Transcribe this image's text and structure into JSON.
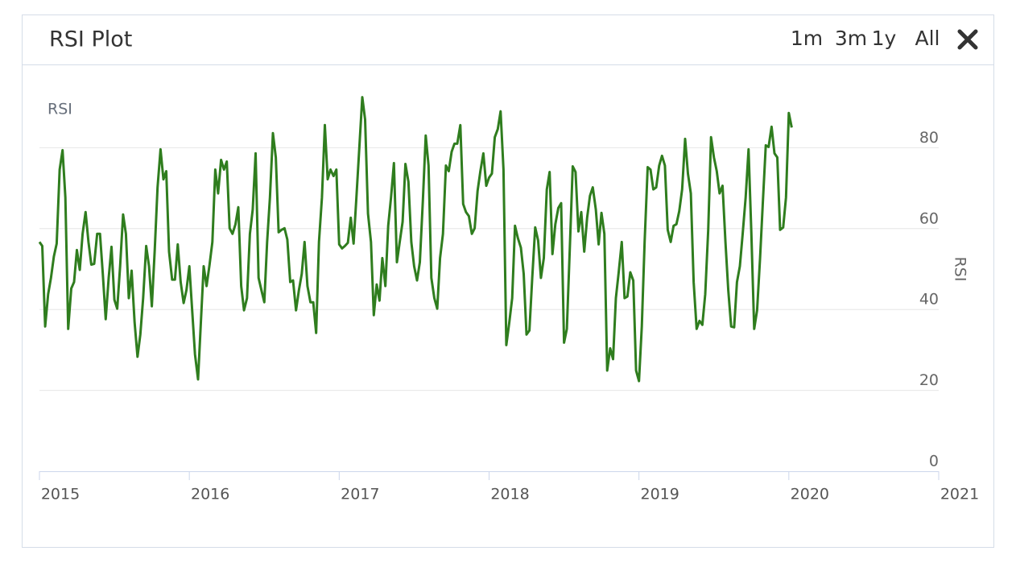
{
  "header": {
    "title": "RSI Plot",
    "buttons": [
      "1m",
      "3m",
      "1y",
      "All"
    ]
  },
  "chart_data": {
    "type": "line",
    "ylabel": "RSI",
    "xlim": [
      2015,
      2021
    ],
    "xticks": [
      2015,
      2016,
      2017,
      2018,
      2019,
      2020,
      2021
    ],
    "ylim": [
      0,
      100
    ],
    "yticks": [
      0,
      20,
      40,
      60,
      80
    ],
    "grid": true,
    "x": [
      2015,
      2015.019,
      2015.038,
      2015.058,
      2015.077,
      2015.096,
      2015.115,
      2015.135,
      2015.154,
      2015.173,
      2015.192,
      2015.212,
      2015.231,
      2015.25,
      2015.269,
      2015.288,
      2015.308,
      2015.327,
      2015.346,
      2015.365,
      2015.385,
      2015.404,
      2015.423,
      2015.442,
      2015.462,
      2015.481,
      2015.5,
      2015.519,
      2015.538,
      2015.558,
      2015.577,
      2015.596,
      2015.615,
      2015.635,
      2015.654,
      2015.673,
      2015.692,
      2015.712,
      2015.731,
      2015.75,
      2015.769,
      2015.788,
      2015.808,
      2015.827,
      2015.846,
      2015.865,
      2015.885,
      2015.904,
      2015.923,
      2015.942,
      2015.962,
      2015.981,
      2016,
      2016.019,
      2016.038,
      2016.058,
      2016.077,
      2016.096,
      2016.115,
      2016.135,
      2016.154,
      2016.173,
      2016.192,
      2016.212,
      2016.231,
      2016.25,
      2016.269,
      2016.288,
      2016.308,
      2016.327,
      2016.346,
      2016.365,
      2016.385,
      2016.404,
      2016.423,
      2016.442,
      2016.462,
      2016.481,
      2016.5,
      2016.519,
      2016.538,
      2016.558,
      2016.577,
      2016.596,
      2016.615,
      2016.635,
      2016.654,
      2016.673,
      2016.692,
      2016.712,
      2016.731,
      2016.75,
      2016.769,
      2016.788,
      2016.808,
      2016.827,
      2016.846,
      2016.865,
      2016.885,
      2016.904,
      2016.923,
      2016.942,
      2016.962,
      2016.981,
      2017,
      2017.019,
      2017.038,
      2017.058,
      2017.077,
      2017.096,
      2017.115,
      2017.135,
      2017.154,
      2017.173,
      2017.192,
      2017.212,
      2017.231,
      2017.25,
      2017.269,
      2017.288,
      2017.308,
      2017.327,
      2017.346,
      2017.365,
      2017.385,
      2017.404,
      2017.423,
      2017.442,
      2017.462,
      2017.481,
      2017.5,
      2017.519,
      2017.538,
      2017.558,
      2017.577,
      2017.596,
      2017.615,
      2017.635,
      2017.654,
      2017.673,
      2017.692,
      2017.712,
      2017.731,
      2017.75,
      2017.769,
      2017.788,
      2017.808,
      2017.827,
      2017.846,
      2017.865,
      2017.885,
      2017.904,
      2017.923,
      2017.942,
      2017.962,
      2017.981,
      2018,
      2018.019,
      2018.038,
      2018.058,
      2018.077,
      2018.096,
      2018.115,
      2018.135,
      2018.154,
      2018.173,
      2018.192,
      2018.212,
      2018.231,
      2018.25,
      2018.269,
      2018.288,
      2018.308,
      2018.327,
      2018.346,
      2018.365,
      2018.385,
      2018.404,
      2018.423,
      2018.442,
      2018.462,
      2018.481,
      2018.5,
      2018.519,
      2018.538,
      2018.558,
      2018.577,
      2018.596,
      2018.615,
      2018.635,
      2018.654,
      2018.673,
      2018.692,
      2018.712,
      2018.731,
      2018.75,
      2018.769,
      2018.788,
      2018.808,
      2018.827,
      2018.846,
      2018.865,
      2018.885,
      2018.904,
      2018.923,
      2018.942,
      2018.962,
      2018.981,
      2019,
      2019.019,
      2019.038,
      2019.058,
      2019.077,
      2019.096,
      2019.115,
      2019.135,
      2019.154,
      2019.173,
      2019.192,
      2019.212,
      2019.231,
      2019.25,
      2019.269,
      2019.288,
      2019.308,
      2019.327,
      2019.346,
      2019.365,
      2019.385,
      2019.404,
      2019.423,
      2019.442,
      2019.462,
      2019.481,
      2019.5,
      2019.519,
      2019.538,
      2019.558,
      2019.577,
      2019.596,
      2019.615,
      2019.635,
      2019.654,
      2019.673,
      2019.692,
      2019.712,
      2019.731,
      2019.75,
      2019.769,
      2019.788,
      2019.808,
      2019.827,
      2019.846,
      2019.865,
      2019.885,
      2019.904,
      2019.923,
      2019.942,
      2019.962,
      2019.981,
      2020,
      2020.019
    ],
    "series": [
      {
        "name": "RSI",
        "color": "#2f7d1e",
        "values": [
          56.7,
          55.7,
          35.8,
          43.8,
          47.8,
          53.1,
          56.3,
          74.6,
          79.4,
          67.7,
          35.2,
          45.2,
          46.8,
          54.7,
          49.8,
          58.7,
          64.1,
          56.7,
          51.1,
          51.3,
          58.7,
          58.7,
          48.8,
          37.6,
          47.8,
          55.5,
          42.4,
          40.2,
          50.7,
          63.5,
          58.7,
          42.8,
          49.6,
          36.8,
          28.3,
          33.8,
          42.8,
          55.7,
          50.7,
          40.8,
          54.7,
          70.2,
          79.6,
          72.2,
          74.2,
          54.3,
          47.4,
          47.4,
          56.1,
          46.8,
          41.6,
          44.8,
          50.7,
          39.8,
          28.9,
          22.7,
          36.8,
          50.7,
          45.8,
          51.1,
          56.7,
          74.6,
          68.7,
          77.0,
          74.6,
          76.6,
          60.1,
          58.7,
          61.1,
          65.3,
          45.8,
          39.8,
          42.8,
          58.7,
          64.7,
          78.6,
          47.8,
          44.8,
          41.8,
          56.7,
          67.7,
          83.6,
          77.6,
          59.1,
          59.7,
          60.1,
          57.3,
          46.8,
          47.2,
          39.8,
          44.8,
          48.8,
          56.7,
          45.8,
          41.8,
          41.8,
          34.2,
          56.7,
          67.7,
          85.6,
          72.2,
          74.6,
          73.0,
          74.6,
          56.1,
          55.1,
          55.7,
          56.5,
          62.7,
          56.3,
          67.7,
          80.6,
          92.5,
          87.0,
          63.7,
          56.7,
          38.6,
          46.2,
          42.2,
          52.7,
          45.8,
          60.7,
          67.7,
          76.2,
          51.7,
          56.7,
          61.7,
          76.0,
          71.6,
          56.7,
          50.7,
          47.2,
          51.7,
          66.7,
          83.0,
          75.6,
          47.8,
          42.8,
          40.2,
          52.7,
          58.7,
          75.6,
          74.2,
          79.0,
          81.0,
          81.0,
          85.6,
          66.1,
          64.1,
          63.1,
          58.7,
          60.1,
          69.3,
          74.2,
          78.6,
          70.6,
          72.6,
          73.6,
          82.6,
          84.6,
          89.0,
          74.6,
          31.2,
          36.8,
          42.8,
          60.7,
          57.7,
          55.3,
          48.8,
          33.8,
          34.8,
          47.8,
          60.3,
          57.1,
          47.8,
          52.7,
          69.7,
          74.0,
          53.7,
          61.1,
          65.1,
          66.3,
          31.8,
          35.2,
          54.7,
          75.4,
          74.0,
          59.3,
          64.1,
          54.3,
          62.7,
          68.1,
          70.2,
          64.7,
          56.1,
          63.9,
          58.7,
          24.9,
          30.4,
          27.7,
          42.8,
          49.2,
          56.7,
          42.8,
          43.2,
          49.2,
          47.2,
          24.9,
          22.3,
          35.8,
          56.7,
          75.2,
          74.6,
          69.7,
          70.2,
          75.6,
          78.0,
          75.6,
          59.7,
          56.7,
          60.7,
          61.1,
          64.3,
          69.7,
          82.2,
          73.6,
          68.7,
          46.8,
          35.2,
          37.2,
          36.2,
          43.8,
          59.7,
          82.6,
          77.6,
          74.2,
          68.7,
          70.6,
          56.7,
          44.8,
          35.8,
          35.6,
          46.8,
          50.7,
          58.7,
          67.7,
          79.6,
          58.7,
          35.2,
          39.8,
          52.7,
          66.7,
          80.6,
          80.2,
          85.2,
          78.6,
          77.6,
          59.7,
          60.3,
          67.7,
          88.6,
          85.0
        ]
      }
    ]
  }
}
